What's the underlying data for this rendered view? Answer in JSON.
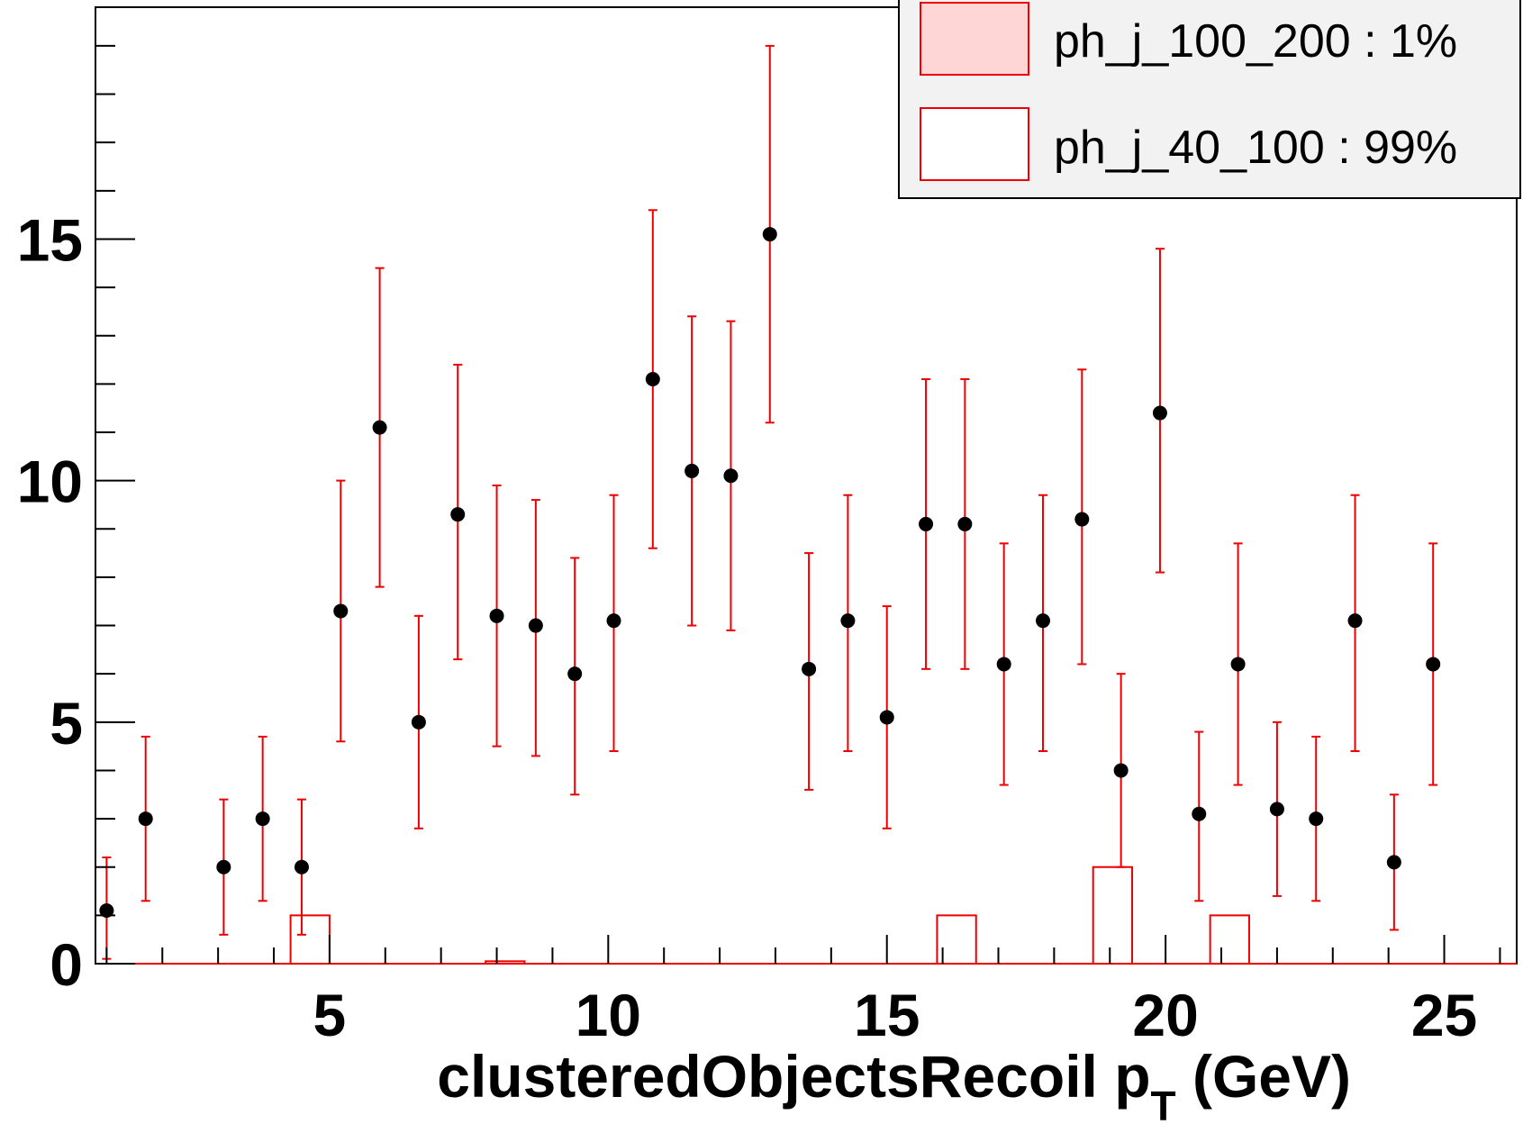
{
  "chart_data": {
    "type": "histogram",
    "xlabel": "clusteredObjectsRecoil p",
    "xlabel_sub": "T",
    "xlabel_unit": " (GeV)",
    "xlim": [
      0.8,
      26.3
    ],
    "ylim": [
      0,
      19.8
    ],
    "x_ticks": [
      "5",
      "10",
      "15",
      "20",
      "25"
    ],
    "y_ticks": [
      "0",
      "5",
      "10",
      "15"
    ],
    "legend": {
      "placement": "top-right",
      "entries": [
        {
          "label": "ph_j_100_200 : 1%",
          "fill": "#ffd6d6",
          "stroke": "#ee0000"
        },
        {
          "label": "ph_j_40_100 : 99%",
          "fill": "#ffffff",
          "stroke": "#ee0000"
        }
      ]
    },
    "colors": {
      "error_bar": "#ee0000",
      "marker": "#000000",
      "hist_line": "#ee0000"
    },
    "histogram_bin_width": 0.7,
    "stacked_histogram": [
      {
        "x_low": 4.3,
        "x_high": 5.0,
        "value": 1
      },
      {
        "x_low": 7.8,
        "x_high": 8.5,
        "value": 0.05
      },
      {
        "x_low": 15.9,
        "x_high": 16.6,
        "value": 1
      },
      {
        "x_low": 18.7,
        "x_high": 19.4,
        "value": 2
      },
      {
        "x_low": 20.8,
        "x_high": 21.5,
        "value": 1
      }
    ],
    "series": [
      {
        "x": [
          1.0,
          1.7,
          3.1,
          3.8,
          4.5,
          5.2,
          5.9,
          6.6,
          7.3,
          8.0,
          8.7,
          9.4,
          10.1,
          10.8,
          11.5,
          12.2,
          12.9,
          13.6,
          14.3,
          15.0,
          15.7,
          16.4,
          17.1,
          17.8,
          18.5,
          19.2,
          19.9,
          20.6,
          21.3,
          22.0,
          22.7,
          23.4,
          24.1,
          24.8
        ],
        "y": [
          1.1,
          3.0,
          2.0,
          3.0,
          2.0,
          7.3,
          11.1,
          5.0,
          9.3,
          7.2,
          7.0,
          6.0,
          7.1,
          12.1,
          10.2,
          10.1,
          15.1,
          6.1,
          7.1,
          5.1,
          9.1,
          9.1,
          6.2,
          7.1,
          9.2,
          4.0,
          11.4,
          3.1,
          6.2,
          3.2,
          3.0,
          7.1,
          2.1,
          6.2
        ],
        "y_low": [
          0.1,
          1.3,
          0.6,
          1.3,
          0.6,
          4.6,
          7.8,
          2.8,
          6.3,
          4.5,
          4.3,
          3.5,
          4.4,
          8.6,
          7.0,
          6.9,
          11.2,
          3.6,
          4.4,
          2.8,
          6.1,
          6.1,
          3.7,
          4.4,
          6.2,
          2.0,
          8.1,
          1.3,
          3.7,
          1.4,
          1.3,
          4.4,
          0.7,
          3.7
        ],
        "y_high": [
          2.2,
          4.7,
          3.4,
          4.7,
          3.4,
          10.0,
          14.4,
          7.2,
          12.4,
          9.9,
          9.6,
          8.4,
          9.7,
          15.6,
          13.4,
          13.3,
          19.0,
          8.5,
          9.7,
          7.4,
          12.1,
          12.1,
          8.7,
          9.7,
          12.3,
          6.0,
          14.8,
          4.8,
          8.7,
          5.0,
          4.7,
          9.7,
          3.5,
          8.7
        ]
      }
    ]
  }
}
